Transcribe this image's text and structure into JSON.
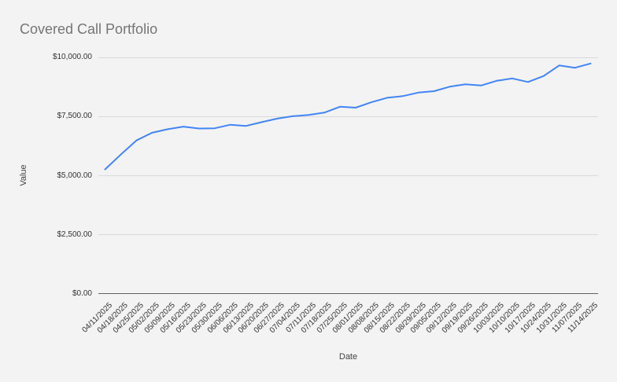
{
  "chart_data": {
    "type": "line",
    "title": "Covered Call Portfolio",
    "xlabel": "Date",
    "ylabel": "Value",
    "legend": "none",
    "grid": "horizontal",
    "ylim": [
      0,
      10000
    ],
    "y_tick_values": [
      0,
      2500,
      5000,
      7500,
      10000
    ],
    "y_tick_labels": [
      "$0.00",
      "$2,500.00",
      "$5,000.00",
      "$7,500.00",
      "$10,000.00"
    ],
    "x": [
      "04/11/2025",
      "04/18/2025",
      "04/25/2025",
      "05/02/2025",
      "05/09/2025",
      "05/16/2025",
      "05/23/2025",
      "05/30/2025",
      "06/06/2025",
      "06/13/2025",
      "06/20/2025",
      "06/27/2025",
      "07/04/2025",
      "07/11/2025",
      "07/18/2025",
      "07/25/2025",
      "08/01/2025",
      "08/08/2025",
      "08/15/2025",
      "08/22/2025",
      "08/29/2025",
      "09/05/2025",
      "09/12/2025",
      "09/19/2025",
      "09/26/2025",
      "10/03/2025",
      "10/10/2025",
      "10/17/2025",
      "10/24/2025",
      "10/31/2025",
      "11/07/2025",
      "11/14/2025"
    ],
    "series": [
      {
        "name": "Value",
        "values": [
          5250,
          5875,
          6475,
          6800,
          6950,
          7060,
          6980,
          6990,
          7140,
          7090,
          7250,
          7400,
          7500,
          7550,
          7650,
          7900,
          7860,
          8090,
          8280,
          8350,
          8500,
          8560,
          8750,
          8850,
          8800,
          9000,
          9100,
          8950,
          9200,
          9650,
          9550,
          9730
        ]
      }
    ]
  },
  "colors": {
    "background": "#f3f3f3",
    "title_text": "#757575",
    "tick_text": "#333333",
    "axis_title_text": "#424242",
    "gridline": "#dadada",
    "axis_line": "#616161",
    "series_line": "#4285f4"
  }
}
